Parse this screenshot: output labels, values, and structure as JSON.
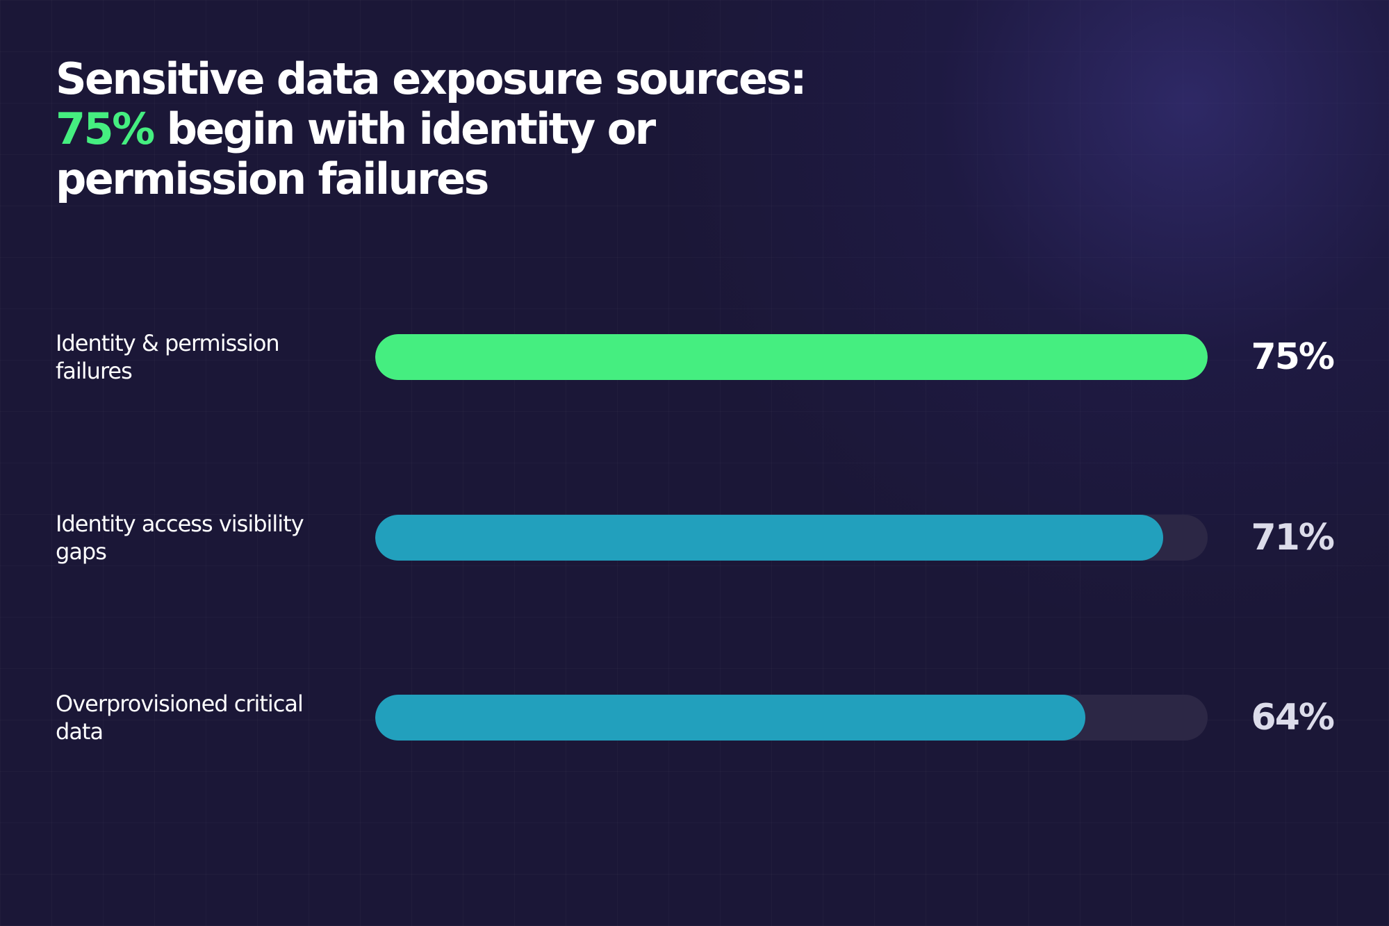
{
  "title": {
    "line1": "Sensitive data exposure sources:",
    "highlight": "75%",
    "line2_rest": " begin with identity or",
    "line3": "permission failures"
  },
  "colors": {
    "background": "#1b1737",
    "accent_green": "#45ee80",
    "bar_blue": "#22a0bd",
    "track": "#2c2745"
  },
  "chart_data": {
    "type": "bar",
    "orientation": "horizontal",
    "title": "Sensitive data exposure sources: 75% begin with identity or permission failures",
    "categories": [
      "Identity & permission failures",
      "Identity access visibility gaps",
      "Overprovisioned critical data"
    ],
    "values": [
      75,
      71,
      64
    ],
    "labels": [
      "75%",
      "71%",
      "64%"
    ],
    "xlim": [
      0,
      75
    ],
    "grid": false,
    "bar_colors": [
      "#45ee80",
      "#22a0bd",
      "#22a0bd"
    ]
  },
  "rows": [
    {
      "label": "Identity & permission\nfailures",
      "value_label": "75%"
    },
    {
      "label": "Identity access visibility\ngaps",
      "value_label": "71%"
    },
    {
      "label": "Overprovisioned critical\ndata",
      "value_label": "64%"
    }
  ]
}
